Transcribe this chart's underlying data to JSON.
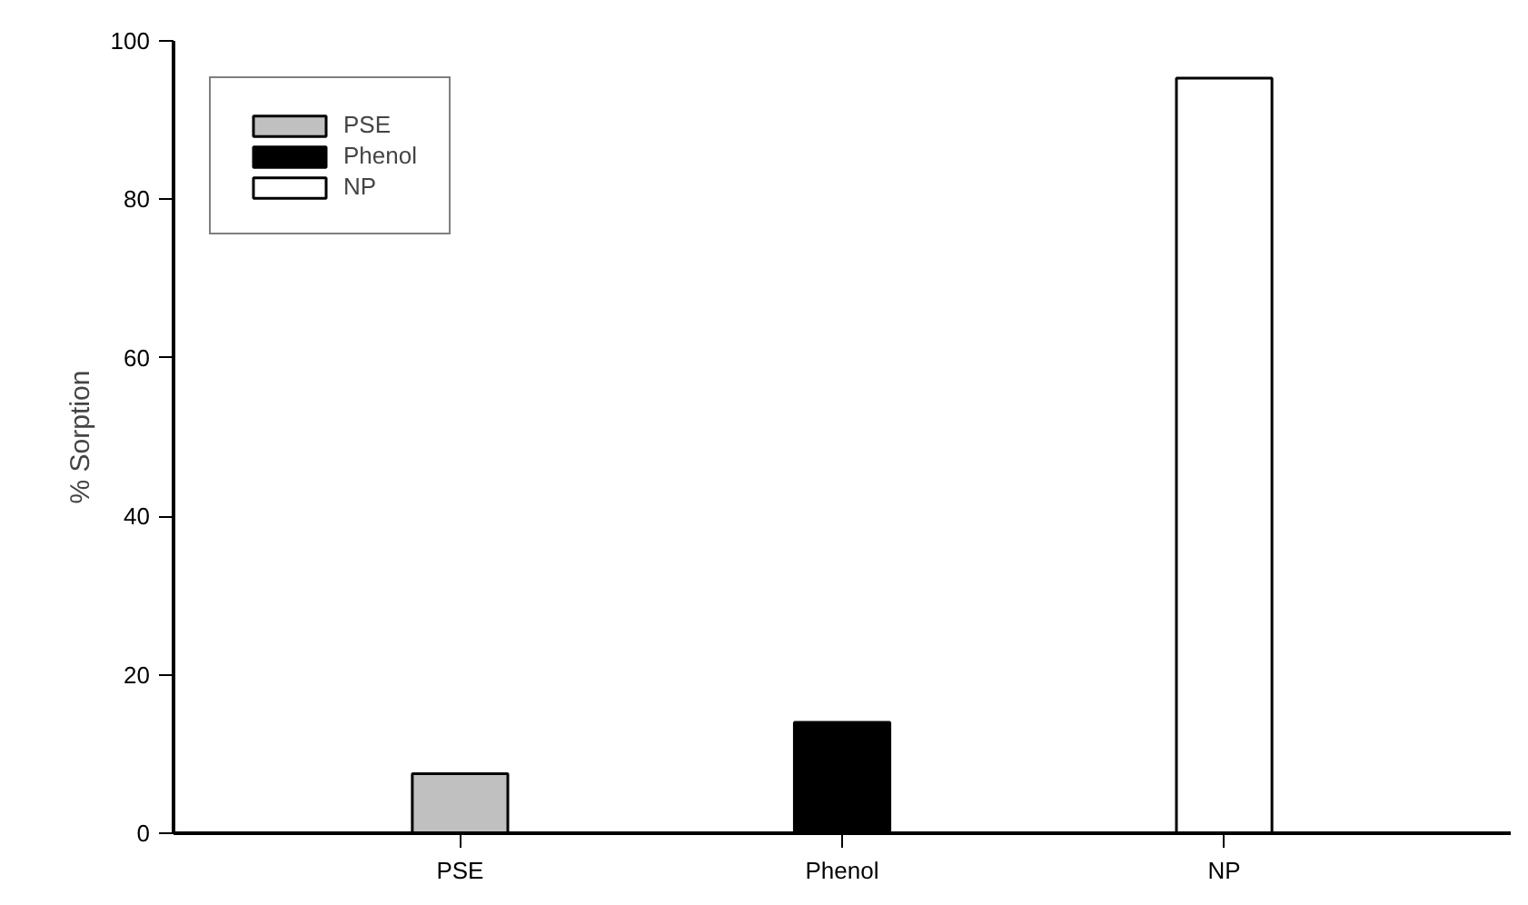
{
  "chart_data": {
    "type": "bar",
    "ylabel": "% Sorption",
    "categories": [
      "PSE",
      "Phenol",
      "NP"
    ],
    "series": [
      {
        "name": "PSE",
        "color": "#c0c0c0",
        "values": [
          7.5,
          null,
          null
        ]
      },
      {
        "name": "Phenol",
        "color": "#000000",
        "values": [
          null,
          14.0,
          null
        ]
      },
      {
        "name": "NP",
        "color": "#ffffff",
        "values": [
          null,
          null,
          95.3
        ]
      }
    ],
    "ylim": [
      0,
      100
    ],
    "yticks": [
      0,
      20,
      40,
      60,
      80,
      100
    ],
    "grid": false,
    "legend": "top left"
  }
}
